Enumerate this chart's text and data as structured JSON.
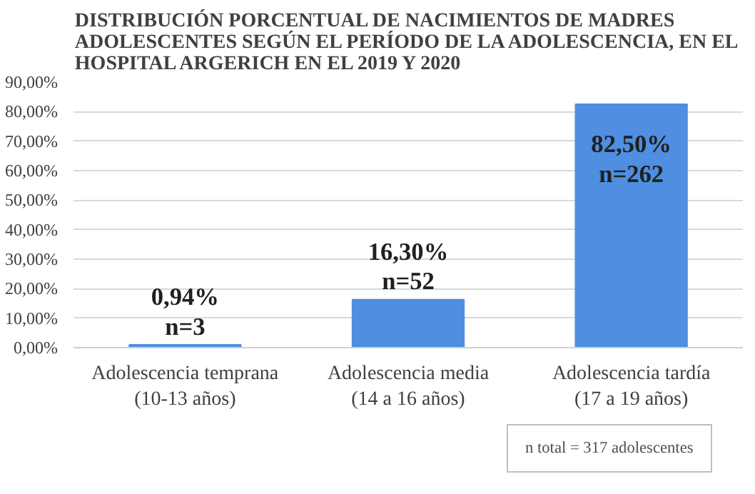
{
  "chart_data": {
    "type": "bar",
    "title": "DISTRIBUCIÓN PORCENTUAL DE NACIMIENTOS DE MADRES\nADOLESCENTES SEGÚN EL PERÍODO DE LA ADOLESCENCIA, EN EL\nHOSPITAL ARGERICH EN EL 2019 Y 2020",
    "categories": [
      "Adolescencia temprana\n(10-13 años)",
      "Adolescencia media\n(14 a 16 años)",
      "Adolescencia tardía\n(17 a 19 años)"
    ],
    "values": [
      0.94,
      16.3,
      82.5
    ],
    "value_labels": [
      "0,94%\nn=3",
      "16,30%\nn=52",
      "82,50%\nn=262"
    ],
    "color": "#4f8ee0",
    "ylim": [
      0,
      90
    ],
    "yticks": [
      {
        "value": 0,
        "label": "0,00%"
      },
      {
        "value": 10,
        "label": "10,00%"
      },
      {
        "value": 20,
        "label": "20,00%"
      },
      {
        "value": 30,
        "label": "30,00%"
      },
      {
        "value": 40,
        "label": "40,00%"
      },
      {
        "value": 50,
        "label": "50,00%"
      },
      {
        "value": 60,
        "label": "60,00%"
      },
      {
        "value": 70,
        "label": "70,00%"
      },
      {
        "value": 80,
        "label": "80,00%"
      },
      {
        "value": 90,
        "label": "90,00%"
      }
    ],
    "grid": "y",
    "annotations": [
      "n total = 317 adolescentes"
    ]
  }
}
